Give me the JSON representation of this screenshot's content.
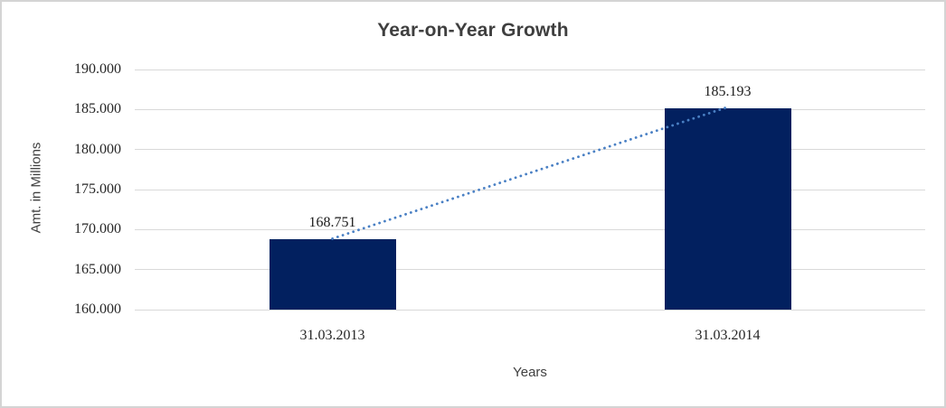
{
  "chart_data": {
    "type": "bar",
    "title": "Year-on-Year Growth",
    "xlabel": "Years",
    "ylabel": "Amt. in Millions",
    "categories": [
      "31.03.2013",
      "31.03.2014"
    ],
    "values": [
      168.751,
      185.193
    ],
    "data_labels": [
      "168.751",
      "185.193"
    ],
    "ylim": [
      160,
      190
    ],
    "y_ticks": [
      160,
      165,
      170,
      175,
      180,
      185,
      190
    ],
    "y_tick_labels": [
      "160.000",
      "165.000",
      "170.000",
      "175.000",
      "180.000",
      "185.000",
      "190.000"
    ],
    "grid": true,
    "legend": false,
    "trendline": {
      "style": "dotted",
      "connects": [
        "31.03.2013",
        "31.03.2014"
      ]
    },
    "colors": {
      "bar": "#02205F",
      "gridline": "#d9d9d9",
      "title_text": "#3f3f3f",
      "axis_title_text": "#3f3f3f",
      "tick_text": "#262626",
      "trendline": "#4a80c4",
      "frame_border": "#d4d4d4",
      "background": "#ffffff"
    }
  }
}
